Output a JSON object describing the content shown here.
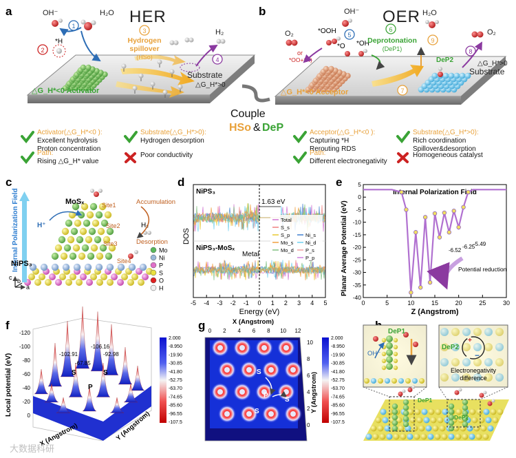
{
  "panels": {
    "a": {
      "letter": "a",
      "title": "HER",
      "oh": "OH⁻",
      "h2o": "H₂O",
      "h2": "H₂",
      "star_h": "*H",
      "spillover": [
        "Hydrogen",
        "spillover",
        "(HSo)"
      ],
      "substrate": "Substrate",
      "substrate_dg": "△G_H*>0",
      "activator": "△G_H*<0 Activator",
      "steps": [
        "1",
        "2",
        "3",
        "4"
      ],
      "notes": [
        {
          "ok": true,
          "title": "Activator(△G_H*<0 ):",
          "lines": [
            "Excellent hydrolysis",
            "Proton concentration"
          ]
        },
        {
          "ok": true,
          "title": "Substrate(△G_H*>0):",
          "lines": [
            "Hydrogen desorption"
          ]
        },
        {
          "ok": true,
          "title": "Path:",
          "lines": [
            "Rising △G_H* value"
          ]
        },
        {
          "ok": false,
          "title": "",
          "lines": [
            "Poor conductivity"
          ]
        }
      ]
    },
    "b": {
      "letter": "b",
      "title": "OER",
      "oh": "OH⁻",
      "h2o": "H₂O",
      "o2_left": "O₂",
      "o2_right": "O₂",
      "ooh": "*OOH",
      "o": "*O",
      "oh_star": "*OH",
      "or_label": [
        "or",
        "*OO+*H)"
      ],
      "deprotonation": [
        "Deprotonation",
        "(DeP1)"
      ],
      "dep2": "DeP2",
      "acceptor": "△G_H*<0 Acceptor",
      "substrate": "Substrate",
      "substrate_dg": "△G_H*>0",
      "steps": [
        "5",
        "6",
        "7",
        "8",
        "9"
      ],
      "notes": [
        {
          "ok": true,
          "title": "Acceptor(△G_H*<0 ):",
          "lines": [
            "Capturing *H",
            "Rerouting RDS"
          ]
        },
        {
          "ok": true,
          "title": "Substrate(△G_H*>0):",
          "lines": [
            "Rich coordination",
            "Spillover&desorption"
          ]
        },
        {
          "ok": true,
          "title": "Path:",
          "lines": [
            "Different electronegativity"
          ]
        },
        {
          "ok": false,
          "title": "",
          "lines": [
            "Homogeneous catalyst"
          ]
        }
      ]
    },
    "couple": {
      "word": "Couple",
      "hso": "HSo",
      "amp": "&",
      "dep": "DeP"
    },
    "c": {
      "letter": "c",
      "field": "Internal Polarization Field",
      "mos": "MoSₓ",
      "nips": "NiPS₃",
      "hplus": "H⁺",
      "h2": "H₂",
      "accumulation": "Accumulation",
      "desorption": "Desorption",
      "sites": [
        "Site1",
        "Site2",
        "Site3",
        "Site4"
      ],
      "legend": [
        {
          "label": "Mo",
          "color": "#5ab85a"
        },
        {
          "label": "Ni",
          "color": "#9ab8d8"
        },
        {
          "label": "P",
          "color": "#e070c8"
        },
        {
          "label": "S",
          "color": "#e8e040"
        },
        {
          "label": "O",
          "color": "#e02020"
        },
        {
          "label": "H",
          "color": "#f0f0f0"
        }
      ],
      "axes": [
        "c",
        "b",
        "a"
      ]
    },
    "d": {
      "letter": "d",
      "ylabel": "DOS",
      "xlabel": "Energy (eV)",
      "top_label": "NiPS₃",
      "bottom_label": "NiPS₃-MoSₓ",
      "gap": "1.63 eV",
      "metal": "Metal",
      "xticks": [
        "-5",
        "-4",
        "-3",
        "-2",
        "-1",
        "0",
        "1",
        "2",
        "3",
        "4",
        "5"
      ],
      "legend_left": [
        {
          "label": "Total",
          "color": "#d070d0"
        },
        {
          "label": "S_s",
          "color": "#f08080"
        },
        {
          "label": "S_p",
          "color": "#e8c830"
        },
        {
          "label": "Mo_s",
          "color": "#f0a040"
        },
        {
          "label": "Mo_d",
          "color": "#80c080"
        }
      ],
      "legend_right": [
        {
          "label": "Ni_s",
          "color": "#4080d0"
        },
        {
          "label": "Ni_d",
          "color": "#70d0f0"
        },
        {
          "label": "P_s",
          "color": "#f0a0a0"
        },
        {
          "label": "P_p",
          "color": "#d080e0"
        }
      ]
    },
    "e": {
      "letter": "e",
      "title": "Internal Polarization Field",
      "ylabel": "Planar Average Potential (eV)",
      "xlabel": "Z (Angstrom)",
      "annotations": [
        "-6.52",
        "-6.25",
        "-5.49"
      ],
      "reduction": "Potential reduction",
      "xticks": [
        "0",
        "5",
        "10",
        "15",
        "20",
        "25",
        "30"
      ],
      "yticks": [
        "5",
        "0",
        "-5",
        "-10",
        "-15",
        "-20",
        "-25",
        "-30",
        "-35",
        "-40"
      ],
      "chart_data": {
        "type": "line",
        "xlabel": "Z (Angstrom)",
        "ylabel": "Planar Average Potential (eV)",
        "title": "Internal Polarization Field",
        "xlim": [
          0,
          30
        ],
        "ylim": [
          -40,
          5
        ],
        "x": [
          0,
          6,
          8,
          9,
          10,
          11,
          12,
          13,
          14,
          15,
          16,
          17,
          18,
          19,
          20,
          21,
          22,
          23,
          30
        ],
        "series": [
          {
            "values": [
              3,
              3,
              2,
              -5,
              -38,
              -14,
              -36,
              -8,
              -34,
              -6.52,
              -16,
              -6.25,
              -14,
              -5.49,
              -12,
              -4,
              2,
              3,
              3
            ]
          }
        ]
      }
    },
    "f": {
      "letter": "f",
      "zlabel": "Local potential (eV)",
      "xlabel": "X (Angstrom)",
      "ylabel": "Y (Angstrom)",
      "values": [
        "-102.91",
        "-106.16",
        "-92.98",
        "-67.85"
      ],
      "atoms": [
        "S",
        "S",
        "P"
      ],
      "zticks": [
        "-120",
        "-100",
        "-80",
        "-60",
        "-40",
        "-20",
        "0"
      ],
      "colorbar": [
        "2.000",
        "-8.950",
        "-19.90",
        "-30.85",
        "-41.80",
        "-52.75",
        "-63.70",
        "-74.65",
        "-85.60",
        "-96.55",
        "-107.5"
      ]
    },
    "g": {
      "letter": "g",
      "xlabel": "X (Angstrom)",
      "ylabel": "Y (Angstrom)",
      "xticks": [
        "0",
        "2",
        "4",
        "6",
        "8",
        "10",
        "12"
      ],
      "yticks": [
        "10",
        "8",
        "6",
        "4",
        "2",
        "0"
      ],
      "atoms": [
        "S",
        "P",
        "S",
        "S"
      ],
      "colorbar": [
        "2.000",
        "-8.950",
        "-19.90",
        "-30.85",
        "-41.80",
        "-52.75",
        "-63.70",
        "-74.65",
        "-85.60",
        "-96.55",
        "-107.5"
      ]
    },
    "h": {
      "letter": "h",
      "dep1": "DeP1",
      "dep2": "DeP2",
      "oh": "OH⁻",
      "electroneg": [
        "Electronegativity",
        "difference"
      ],
      "dep1_b": "DeP1",
      "dep2_b": "DeP2"
    },
    "watermark": "大数据科研"
  },
  "colors": {
    "green": "#3aa335",
    "orange": "#e8a13a",
    "red": "#cc2222",
    "blue_step": "#2d6db5",
    "purple": "#8b3aa0"
  }
}
